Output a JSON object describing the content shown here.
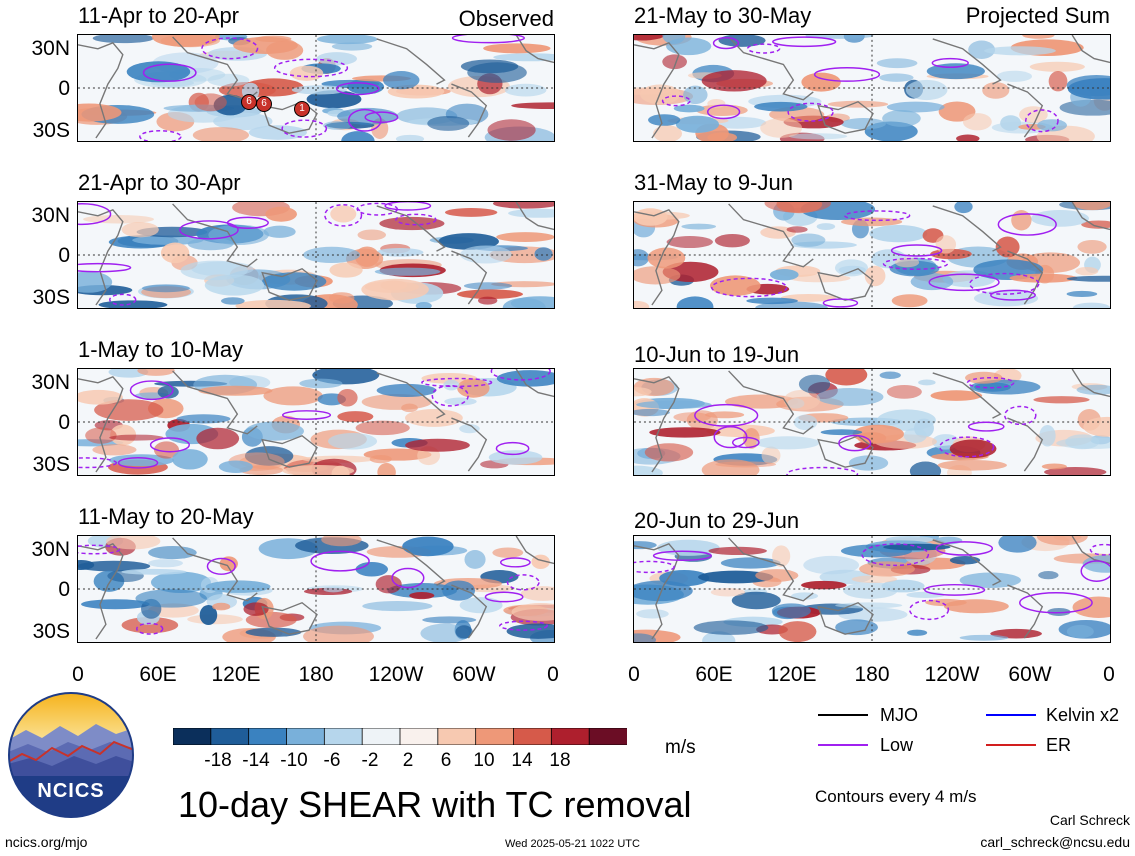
{
  "header": {
    "left_title": "Observed",
    "right_title": "Projected Sum"
  },
  "panels": {
    "left": [
      "11-Apr to 20-Apr",
      "21-Apr to 30-Apr",
      "1-May to 10-May",
      "11-May to 20-May"
    ],
    "right": [
      "21-May to 30-May",
      "31-May to 9-Jun",
      "10-Jun to 19-Jun",
      "20-Jun to 29-Jun"
    ]
  },
  "axes": {
    "lat_ticks": [
      "30N",
      "0",
      "30S"
    ],
    "lon_ticks": [
      "0",
      "60E",
      "120E",
      "180",
      "120W",
      "60W",
      "0"
    ]
  },
  "tc_markers": [
    "6",
    "6",
    "1"
  ],
  "colorbar": {
    "ticks": [
      "-18",
      "-14",
      "-10",
      "-6",
      "-2",
      "2",
      "6",
      "10",
      "14",
      "18"
    ],
    "units": "m/s",
    "colors": [
      "#0b2f5b",
      "#1f5d99",
      "#3a82c0",
      "#79b0da",
      "#b6d6ec",
      "#eef3f7",
      "#f9f1ed",
      "#f7c9b1",
      "#ee9878",
      "#d65a4a",
      "#ae1f2d",
      "#6b0d25"
    ]
  },
  "legend": {
    "items": [
      {
        "label": "MJO",
        "color": "#000000"
      },
      {
        "label": "Kelvin x2",
        "color": "#0000ff"
      },
      {
        "label": "Low",
        "color": "#a020f0"
      },
      {
        "label": "ER",
        "color": "#d21e1e"
      }
    ],
    "contour_note": "Contours every 4 m/s"
  },
  "footer": {
    "main_title": "10-day SHEAR with TC removal",
    "logo_text": "NCICS",
    "url": "ncics.org/mjo",
    "timestamp": "Wed 2025-05-21 1022 UTC",
    "author": "Carl Schreck",
    "email": "carl_schreck@ncsu.edu"
  }
}
